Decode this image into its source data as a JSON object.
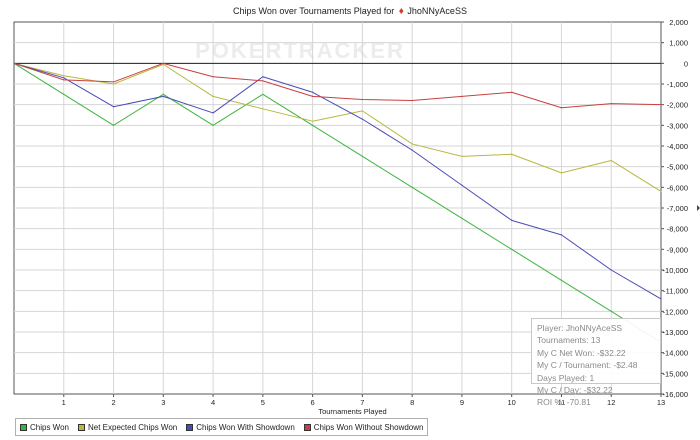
{
  "chart_data": {
    "type": "line",
    "title": "Chips Won over Tournaments Played for",
    "player": "JhoNNyAceSS",
    "watermark": "POKERTRACKER",
    "xlabel": "Tournaments Played",
    "ylabel": "",
    "x": [
      0,
      1,
      2,
      3,
      4,
      5,
      6,
      7,
      8,
      9,
      10,
      11,
      12,
      13
    ],
    "xticks": [
      1,
      2,
      3,
      4,
      5,
      6,
      7,
      8,
      9,
      10,
      11,
      12,
      13
    ],
    "xlim": [
      0,
      13
    ],
    "ylim": [
      -16000,
      2000
    ],
    "yticks": [
      2000,
      1000,
      0,
      -1000,
      -2000,
      -3000,
      -4000,
      -5000,
      -6000,
      -7000,
      -8000,
      -9000,
      -10000,
      -11000,
      -12000,
      -13000,
      -14000,
      -15000,
      -16000
    ],
    "ytick_labels": [
      "2,000",
      "1,000",
      "0",
      "-1,000",
      "-2,000",
      "-3,000",
      "-4,000",
      "-5,000",
      "-6,000",
      "-7,000",
      "-8,000",
      "-9,000",
      "-10,000",
      "-11,000",
      "-12,000",
      "-13,000",
      "-14,000",
      "-15,000",
      "-16,000"
    ],
    "grid": true,
    "legend_position": "bottom-left",
    "series": [
      {
        "name": "Chips Won",
        "color": "#3cb43c",
        "values": [
          0,
          -1500,
          -3000,
          -1500,
          -3000,
          -1500,
          -3000,
          -4500,
          -6000,
          -7500,
          -9000,
          -10500,
          -12000,
          -13500
        ]
      },
      {
        "name": "Net Expected Chips Won",
        "color": "#b8b840",
        "values": [
          0,
          -600,
          -1000,
          -50,
          -1600,
          -2200,
          -2800,
          -2300,
          -3900,
          -4500,
          -4400,
          -5300,
          -4700,
          -6200
        ]
      },
      {
        "name": "Chips Won With Showdown",
        "color": "#4a4ab8",
        "values": [
          0,
          -700,
          -2100,
          -1600,
          -2400,
          -650,
          -1400,
          -2700,
          -4200,
          -5900,
          -7600,
          -8300,
          -10000,
          -11400
        ]
      },
      {
        "name": "Chips Won Without Showdown",
        "color": "#c84040",
        "values": [
          0,
          -800,
          -900,
          0,
          -650,
          -850,
          -1600,
          -1750,
          -1800,
          -1600,
          -1400,
          -2150,
          -1950,
          -2000
        ]
      }
    ],
    "tooltip": [
      "Player: JhoNNyAceSS",
      "Tournaments: 13",
      "My C Net Won: -$32.22",
      "My C / Tournament: -$2.48",
      "Days Played: 1",
      "My C / Day: -$32.22",
      "ROI %: -70.81"
    ]
  }
}
